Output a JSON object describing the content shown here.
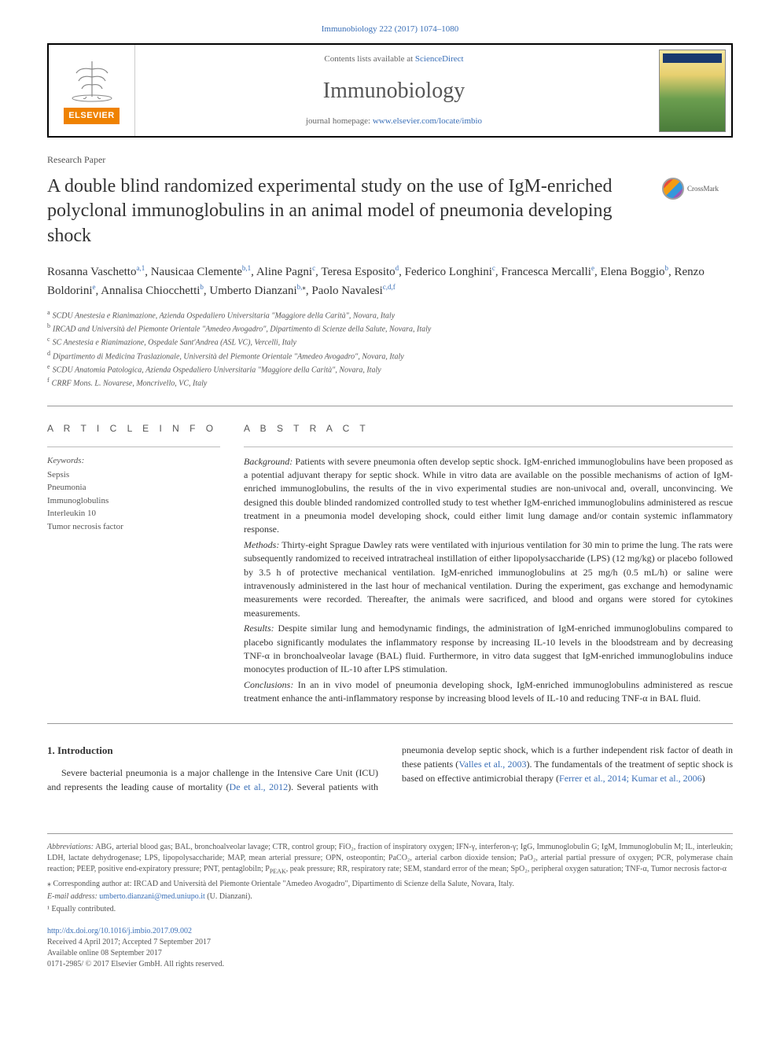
{
  "top_link": {
    "journal": "Immunobiology",
    "citation": "222 (2017) 1074–1080"
  },
  "header": {
    "publisher_logo_text": "ELSEVIER",
    "contents_text": "Contents lists available at ",
    "contents_link": "ScienceDirect",
    "journal_name": "Immunobiology",
    "homepage_text": "journal homepage: ",
    "homepage_link": "www.elsevier.com/locate/imbio",
    "cover_title": "Immunobiology"
  },
  "paper_type": "Research Paper",
  "title": "A double blind randomized experimental study on the use of IgM-enriched polyclonal immunoglobulins in an animal model of pneumonia developing shock",
  "crossmark_label": "CrossMark",
  "authors": [
    {
      "name": "Rosanna Vaschetto",
      "refs": "a,1"
    },
    {
      "name": "Nausicaa Clemente",
      "refs": "b,1"
    },
    {
      "name": "Aline Pagni",
      "refs": "c"
    },
    {
      "name": "Teresa Esposito",
      "refs": "d"
    },
    {
      "name": "Federico Longhini",
      "refs": "c"
    },
    {
      "name": "Francesca Mercalli",
      "refs": "e"
    },
    {
      "name": "Elena Boggio",
      "refs": "b"
    },
    {
      "name": "Renzo Boldorini",
      "refs": "e"
    },
    {
      "name": "Annalisa Chiocchetti",
      "refs": "b"
    },
    {
      "name": "Umberto Dianzani",
      "refs": "b,",
      "corr": "⁎"
    },
    {
      "name": "Paolo Navalesi",
      "refs": "c,d,f"
    }
  ],
  "affiliations": [
    {
      "key": "a",
      "text": "SCDU Anestesia e Rianimazione, Azienda Ospedaliero Universitaria \"Maggiore della Carità\", Novara, Italy"
    },
    {
      "key": "b",
      "text": "IRCAD and Università del Piemonte Orientale \"Amedeo Avogadro\", Dipartimento di Scienze della Salute, Novara, Italy"
    },
    {
      "key": "c",
      "text": "SC Anestesia e Rianimazione, Ospedale Sant'Andrea (ASL VC), Vercelli, Italy"
    },
    {
      "key": "d",
      "text": "Dipartimento di Medicina Traslazionale, Università del Piemonte Orientale \"Amedeo Avogadro\", Novara, Italy"
    },
    {
      "key": "e",
      "text": "SCDU Anatomia Patologica, Azienda Ospedaliero Universitaria \"Maggiore della Carità\", Novara, Italy"
    },
    {
      "key": "f",
      "text": "CRRF Mons. L. Novarese, Moncrivello, VC, Italy"
    }
  ],
  "article_info": {
    "heading": "A R T I C L E   I N F O",
    "keywords_label": "Keywords:",
    "keywords": [
      "Sepsis",
      "Pneumonia",
      "Immunoglobulins",
      "Interleukin 10",
      "Tumor necrosis factor"
    ]
  },
  "abstract": {
    "heading": "A B S T R A C T",
    "sections": [
      {
        "head": "Background:",
        "text": " Patients with severe pneumonia often develop septic shock. IgM-enriched immunoglobulins have been proposed as a potential adjuvant therapy for septic shock. While in vitro data are available on the possible mechanisms of action of IgM-enriched immunoglobulins, the results of the in vivo experimental studies are non-univocal and, overall, unconvincing. We designed this double blinded randomized controlled study to test whether IgM-enriched immunoglobulins administered as rescue treatment in a pneumonia model developing shock, could either limit lung damage and/or contain systemic inflammatory response."
      },
      {
        "head": "Methods:",
        "text": " Thirty-eight Sprague Dawley rats were ventilated with injurious ventilation for 30 min to prime the lung. The rats were subsequently randomized to received intratracheal instillation of either lipopolysaccharide (LPS) (12 mg/kg) or placebo followed by 3.5 h of protective mechanical ventilation. IgM-enriched immunoglobulins at 25 mg/h (0.5 mL/h) or saline were intravenously administered in the last hour of mechanical ventilation. During the experiment, gas exchange and hemodynamic measurements were recorded. Thereafter, the animals were sacrificed, and blood and organs were stored for cytokines measurements."
      },
      {
        "head": "Results:",
        "text": " Despite similar lung and hemodynamic findings, the administration of IgM-enriched immunoglobulins compared to placebo significantly modulates the inflammatory response by increasing IL-10 levels in the bloodstream and by decreasing TNF-α in bronchoalveolar lavage (BAL) fluid. Furthermore, in vitro data suggest that IgM-enriched immunoglobulins induce monocytes production of IL-10 after LPS stimulation."
      },
      {
        "head": "Conclusions:",
        "text": " In an in vivo model of pneumonia developing shock, IgM-enriched immunoglobulins administered as rescue treatment enhance the anti-inflammatory response by increasing blood levels of IL-10 and reducing TNF-α in BAL fluid."
      }
    ]
  },
  "introduction": {
    "heading": "1. Introduction",
    "para1_a": "Severe bacterial pneumonia is a major challenge in the Intensive Care Unit (ICU) and represents the leading cause of mortality (",
    "para1_link1": "De et al.,",
    "para1_b": "2012",
    "para1_c": "). Several patients with pneumonia develop septic shock, which is a further independent risk factor of death in these patients (",
    "para1_link2": "Valles et al., 2003",
    "para1_d": "). The fundamentals of the treatment of septic shock is based on effective antimicrobial therapy (",
    "para1_link3": "Ferrer et al., 2014; Kumar et al., 2006",
    "para1_e": ")"
  },
  "footnotes": {
    "abbrev_label": "Abbreviations:",
    "abbrev_text": " ABG, arterial blood gas; BAL, bronchoalveolar lavage; CTR, control group; FiO₂, fraction of inspiratory oxygen; IFN-γ, interferon-γ; IgG, Immunoglobulin G; IgM, Immunoglobulin M; IL, interleukin; LDH, lactate dehydrogenase; LPS, lipopolysaccharide; MAP, mean arterial pressure; OPN, osteopontin; PaCO₂, arterial carbon dioxide tension; PaO₂, arterial partial pressure of oxygen; PCR, polymerase chain reaction; PEEP, positive end-expiratory pressure; PNT, pentaglobiln; P",
    "abbrev_peak": "PEAK",
    "abbrev_text2": ", peak pressure; RR, respiratory rate; SEM, standard error of the mean; SpO₂, peripheral oxygen saturation; TNF-α, Tumor necrosis factor-α",
    "corr_label": "⁎ Corresponding author at: IRCAD and Università del Piemonte Orientale \"Amedeo Avogadro\", Dipartimento di Scienze della Salute, Novara, Italy.",
    "email_label": "E-mail address: ",
    "email": "umberto.dianzani@med.uniupo.it",
    "email_name": " (U. Dianzani).",
    "equal": "¹ Equally contributed."
  },
  "doi": {
    "link": "http://dx.doi.org/10.1016/j.imbio.2017.09.002",
    "received": "Received 4 April 2017; Accepted 7 September 2017",
    "available": "Available online 08 September 2017",
    "copyright": "0171-2985/ © 2017 Elsevier GmbH. All rights reserved."
  },
  "colors": {
    "link": "#3a6fb7",
    "text": "#333333",
    "muted": "#555555",
    "elsevier_orange": "#ef8200"
  }
}
